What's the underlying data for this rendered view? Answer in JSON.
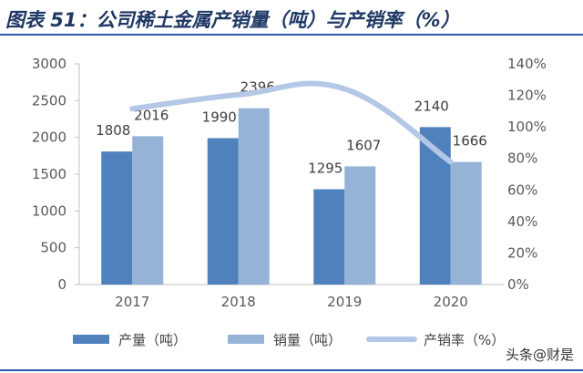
{
  "title": "图表 51：公司稀土金属产销量（吨）与产销率（%）",
  "watermark": "头条@财是",
  "colors": {
    "production": "#4f81bd",
    "sales": "#95b3d7",
    "ratio_line": "#b4c7e7",
    "title": "#1f3864"
  },
  "chart_data": {
    "type": "bar",
    "categories": [
      "2017",
      "2018",
      "2019",
      "2020"
    ],
    "series": [
      {
        "name": "产量（吨）",
        "values": [
          1808,
          1990,
          1295,
          2140
        ]
      },
      {
        "name": "销量（吨）",
        "values": [
          2016,
          2396,
          1607,
          1666
        ]
      },
      {
        "name": "产销率（%）",
        "type": "line",
        "axis": "right",
        "values": [
          111.5,
          120.4,
          124.1,
          77.8
        ]
      }
    ],
    "ylim": [
      0,
      3000
    ],
    "y_ticks": [
      0,
      500,
      1000,
      1500,
      2000,
      2500,
      3000
    ],
    "y2lim": [
      0,
      140
    ],
    "y2_ticks": [
      "0%",
      "20%",
      "40%",
      "60%",
      "80%",
      "100%",
      "120%",
      "140%"
    ],
    "legend_position": "bottom",
    "grid": false
  }
}
